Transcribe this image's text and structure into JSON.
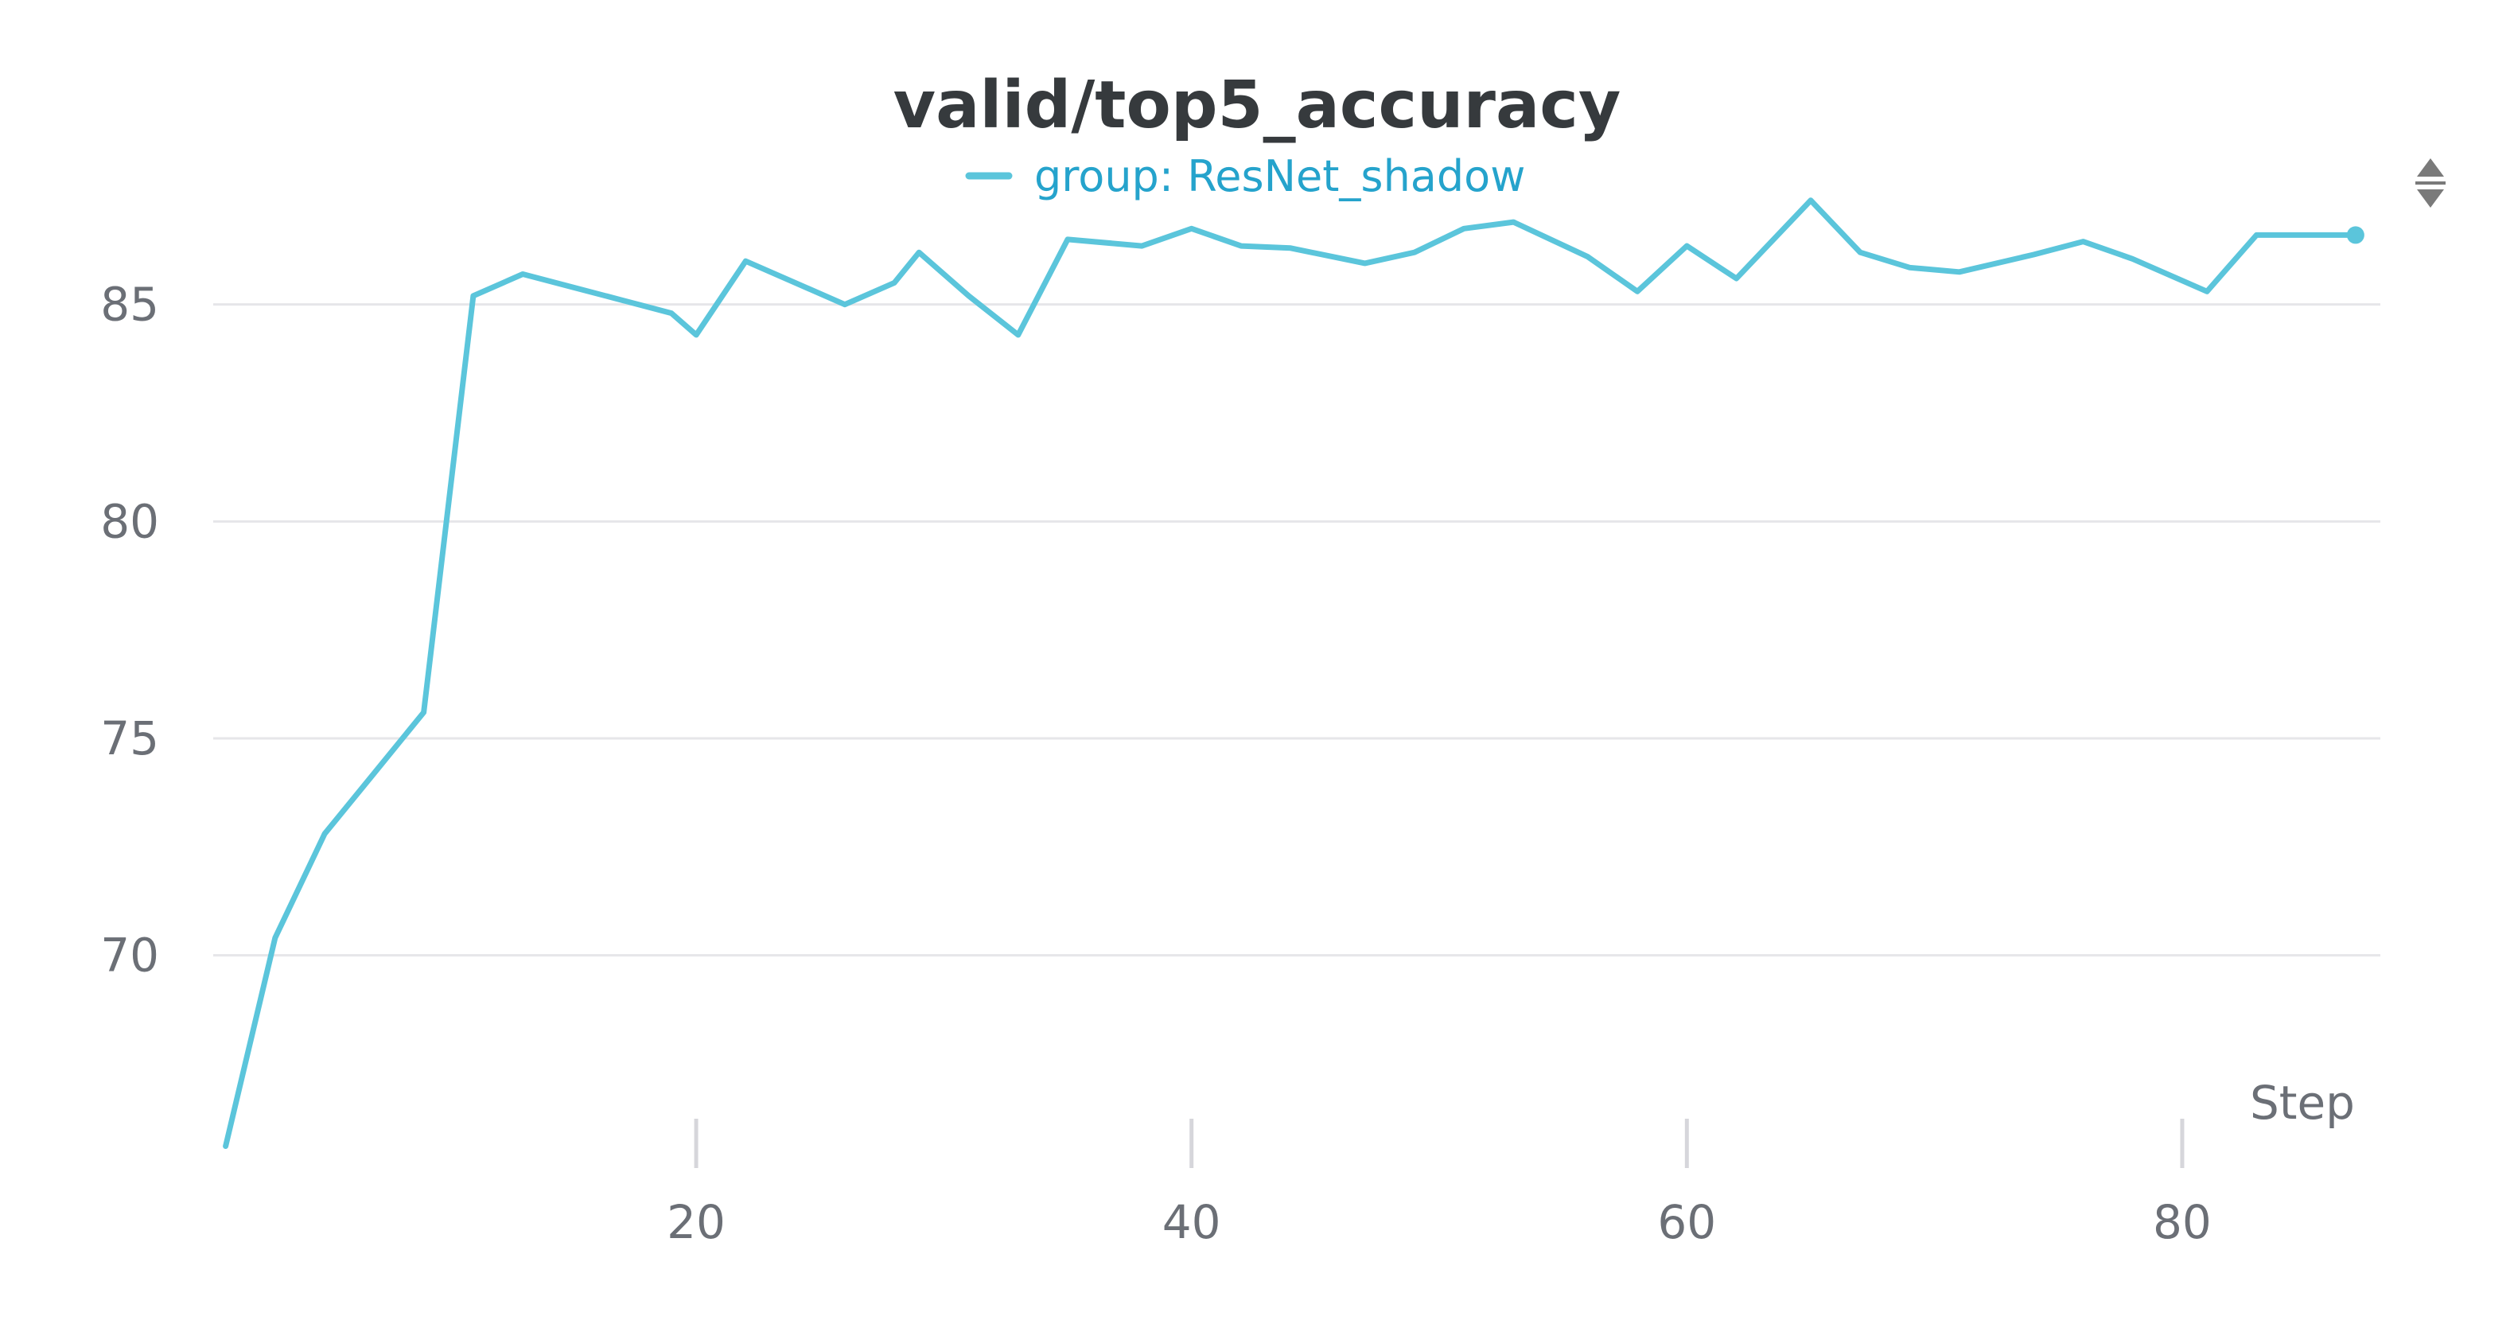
{
  "colors": {
    "series": "#5bc5db",
    "legend_text": "#25a3cc",
    "title": "#363a3d",
    "tick": "#6b6f76",
    "grid": "#e6e6e9",
    "sort_icon": "#7a7a7a"
  },
  "icons": {
    "sort": "sort-arrows-icon"
  },
  "chart_data": {
    "type": "line",
    "title": "valid/top5_accuracy",
    "xlabel": "Step",
    "ylabel": "",
    "legend_position": "top-center",
    "grid": "horizontal",
    "xlim": [
      0.5,
      88
    ],
    "ylim": [
      65.5,
      87.8
    ],
    "x_ticks": [
      20,
      40,
      60,
      80
    ],
    "y_ticks": [
      70,
      75,
      80,
      85
    ],
    "series": [
      {
        "name": "group: ResNet_shadow",
        "x": [
          1,
          3,
          5,
          7,
          9,
          11,
          13,
          15,
          17,
          19,
          20,
          22,
          24,
          26,
          28,
          29,
          31,
          33,
          35,
          38,
          40,
          42,
          44,
          47,
          49,
          51,
          53,
          56,
          58,
          60,
          62,
          65,
          67,
          69,
          71,
          74,
          76,
          78,
          81,
          83,
          85,
          87
        ],
        "y": [
          65.6,
          70.4,
          72.8,
          74.2,
          75.6,
          85.2,
          85.7,
          85.4,
          85.1,
          84.8,
          84.3,
          86.0,
          85.5,
          85.0,
          85.5,
          86.2,
          85.2,
          84.3,
          86.5,
          86.35,
          86.75,
          86.35,
          86.3,
          85.95,
          86.2,
          86.75,
          86.9,
          86.1,
          85.3,
          86.35,
          85.6,
          87.4,
          86.2,
          85.85,
          85.75,
          86.15,
          86.45,
          86.05,
          85.3,
          86.6,
          86.6,
          86.6
        ]
      }
    ]
  }
}
